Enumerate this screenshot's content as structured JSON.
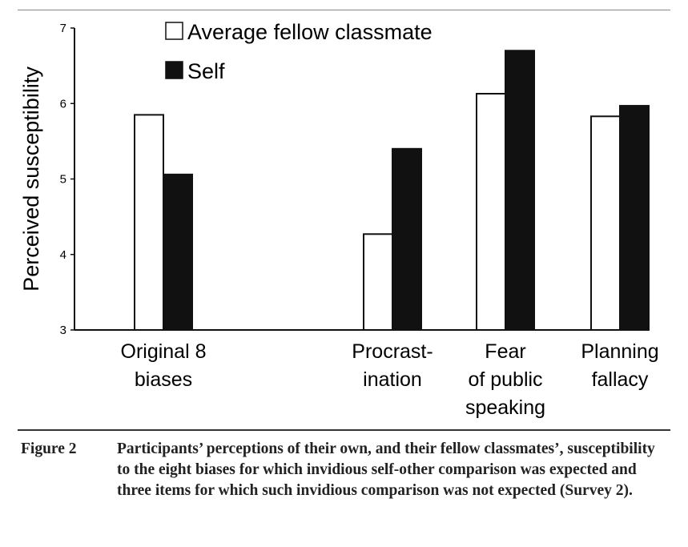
{
  "chart_data": {
    "type": "bar",
    "title": "",
    "xlabel": "",
    "ylabel": "Perceived susceptibility",
    "ylim": [
      3,
      7
    ],
    "yticks": [
      "3",
      "4",
      "5",
      "6",
      "7"
    ],
    "categories": [
      [
        "Original 8",
        "biases"
      ],
      [
        "Procrast-",
        "ination"
      ],
      [
        "Fear",
        "of public",
        "speaking"
      ],
      [
        "Planning",
        "fallacy"
      ]
    ],
    "series": [
      {
        "name": "Average fellow classmate",
        "color": "#ffffff",
        "values": [
          5.85,
          4.27,
          6.13,
          5.83
        ]
      },
      {
        "name": "Self",
        "color": "#111111",
        "values": [
          5.06,
          5.4,
          6.7,
          5.97
        ]
      }
    ],
    "legend_position": "top-left",
    "grid": false
  },
  "caption": {
    "label": "Figure 2",
    "text": "Participants’ perceptions of their own, and their fellow classmates’, susceptibility to the eight biases for which invidious self-other comparison was expected and three items for which such invidious comparison was not expected (Survey 2)."
  }
}
